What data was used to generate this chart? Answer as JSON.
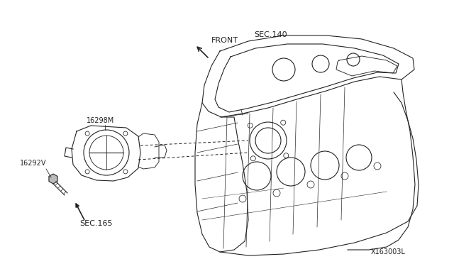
{
  "bg_color": "#ffffff",
  "line_color": "#222222",
  "diagram_id": "X163003L",
  "labels": {
    "front": "FRONT",
    "sec140": "SEC.140",
    "part1": "16298M",
    "part2": "16292V",
    "sec165": "SEC.165"
  },
  "font_size_labels": 7,
  "font_size_diagram_id": 7
}
